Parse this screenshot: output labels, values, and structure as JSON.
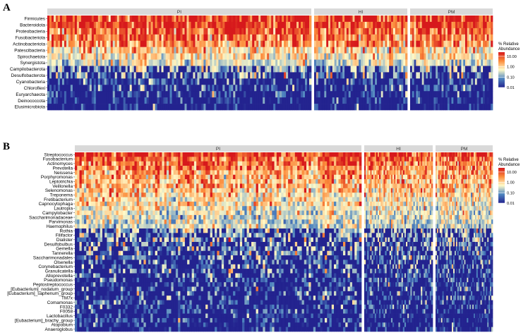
{
  "chart_data": [
    {
      "type": "heatmap",
      "panel_label": "A",
      "groups": [
        "PI",
        "HI",
        "PM"
      ],
      "group_sample_counts": [
        125,
        46,
        42
      ],
      "rows": [
        "Firmicutes",
        "Bacteroidota",
        "Proteobacteria",
        "Fusobacteriota",
        "Actinobacteriota",
        "Patescibacteria",
        "Spirochaetota",
        "Synergistota",
        "Campilobacterota",
        "Desulfobacterota",
        "Cyanobacteria",
        "Chloroflexi",
        "Euryarchaeota",
        "Deinococcota",
        "Elusimicrobiota"
      ],
      "row_typical_log10_abundance": [
        1.3,
        1.2,
        1.0,
        0.9,
        0.75,
        0.2,
        0.1,
        -0.2,
        -0.4,
        -0.6,
        -1.3,
        -1.5,
        -1.6,
        -1.8,
        -1.9
      ],
      "value_unit": "% Relative Abundance",
      "scale": "log10",
      "legend": {
        "title_lines": [
          "% Relative",
          "Abundance"
        ],
        "ticks": [
          "10.00",
          "1.00",
          "0.10",
          "0.01"
        ],
        "tick_values": [
          10,
          1,
          0.1,
          0.01
        ],
        "placement": "right"
      }
    },
    {
      "type": "heatmap",
      "panel_label": "B",
      "groups": [
        "PI",
        "HI",
        "PM"
      ],
      "group_sample_counts": [
        125,
        46,
        42
      ],
      "rows": [
        "Streptococcus",
        "Fusobacterium",
        "Actinomyces",
        "Prevotella",
        "Neissena",
        "Porphyromonas",
        "Leptotrichia",
        "Veillonella",
        "Selenomonas",
        "Treponema",
        "Fretibacterium",
        "Capnocytophaga",
        "Lautropia",
        "Campylobacter",
        "Saccharimonadaceae",
        "Parvimonas",
        "Haemophilus",
        "Rothia",
        "Filifactor",
        "Dialister",
        "Desulfobulbus",
        "Gemella",
        "Tannerella",
        "Saccharimonadales",
        "Olsenella",
        "Corynebacterium",
        "Granulicatella",
        "Alloprevotella",
        "Pseudomonas",
        "Peptostreptococcus",
        "[Eubacterium]_nodatum_group",
        "[Eubacterium]_saphenum_group",
        "TM7x",
        "Comamonas",
        "F0332",
        "F0058",
        "Lactobacillus",
        "[Eubacterium]_brachy_group",
        "Atopobium",
        "Anaeroglobus"
      ],
      "row_typical_log10_abundance": [
        1.3,
        1.0,
        0.9,
        0.8,
        0.6,
        0.6,
        0.5,
        0.5,
        0.3,
        0.3,
        0.1,
        0.1,
        0.0,
        -0.1,
        -0.2,
        -0.3,
        -0.3,
        -0.4,
        -0.5,
        -0.6,
        -0.7,
        -0.8,
        -0.8,
        -0.9,
        -1.0,
        -1.1,
        -1.1,
        -1.2,
        -1.3,
        -1.3,
        -1.4,
        -1.4,
        -1.5,
        -1.5,
        -1.6,
        -1.6,
        -1.7,
        -1.7,
        -1.8,
        -1.8
      ],
      "value_unit": "% Relative Abundance",
      "scale": "log10",
      "legend": {
        "title_lines": [
          "% Relative",
          "Abundance"
        ],
        "ticks": [
          "10.00",
          "1.00",
          "0.10",
          "0.01"
        ],
        "tick_values": [
          10,
          1,
          0.1,
          0.01
        ],
        "placement": "right"
      }
    }
  ],
  "colors": {
    "low": "#23238f",
    "mid_low": "#4f86c0",
    "mid": "#fffbc9",
    "mid_high": "#fc8d3c",
    "high": "#d7191c",
    "strip": "#d9d9d9",
    "gap": "#ffffff"
  }
}
